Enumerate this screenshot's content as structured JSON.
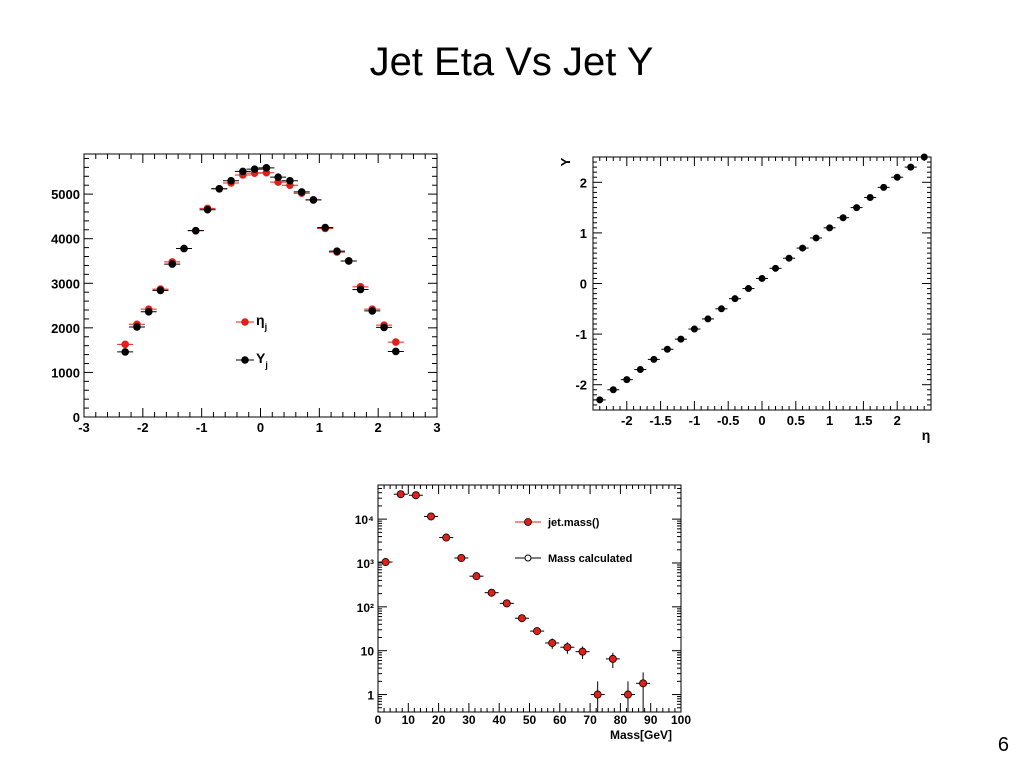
{
  "slide": {
    "title": "Jet Eta Vs Jet Y",
    "page_number": "6"
  },
  "chart_data": [
    {
      "type": "scatter",
      "title": "",
      "xlabel": "",
      "ylabel": "",
      "xlim": [
        -3,
        3
      ],
      "ylim": [
        0,
        5900
      ],
      "xticks": [
        "-3",
        "-2",
        "-1",
        "0",
        "1",
        "2",
        "3"
      ],
      "yticks": [
        "0",
        "1000",
        "2000",
        "3000",
        "4000",
        "5000"
      ],
      "ytick_values": [
        0,
        1000,
        2000,
        3000,
        4000,
        5000
      ],
      "legend": {
        "placement": "center-right"
      },
      "series": [
        {
          "name": "η_j",
          "legend_main": "η",
          "legend_sub": "j",
          "color": "#e0201b",
          "x": [
            -2.3,
            -2.1,
            -1.9,
            -1.7,
            -1.5,
            -1.3,
            -1.1,
            -0.9,
            -0.7,
            -0.5,
            -0.3,
            -0.1,
            0.1,
            0.3,
            0.5,
            0.7,
            0.9,
            1.1,
            1.3,
            1.5,
            1.7,
            1.9,
            2.1,
            2.3
          ],
          "y": [
            1630,
            2080,
            2420,
            2870,
            3480,
            3780,
            4180,
            4680,
            5120,
            5250,
            5430,
            5470,
            5480,
            5270,
            5200,
            5020,
            4870,
            4230,
            3700,
            3500,
            2920,
            2420,
            2060,
            1680
          ]
        },
        {
          "name": "Y_j",
          "legend_main": "Y",
          "legend_sub": "j",
          "color": "#000000",
          "x": [
            -2.3,
            -2.1,
            -1.9,
            -1.7,
            -1.5,
            -1.3,
            -1.1,
            -0.9,
            -0.7,
            -0.5,
            -0.3,
            -0.1,
            0.1,
            0.3,
            0.5,
            0.7,
            0.9,
            1.1,
            1.3,
            1.5,
            1.7,
            1.9,
            2.1,
            2.3
          ],
          "y": [
            1460,
            2020,
            2360,
            2840,
            3430,
            3780,
            4180,
            4650,
            5120,
            5300,
            5510,
            5560,
            5590,
            5380,
            5300,
            5050,
            4870,
            4250,
            3720,
            3500,
            2860,
            2380,
            2010,
            1470
          ]
        }
      ]
    },
    {
      "type": "scatter",
      "title": "",
      "xlabel": "η",
      "ylabel": "Y",
      "xlim": [
        -2.5,
        2.5
      ],
      "ylim": [
        -2.5,
        2.5
      ],
      "xticks": [
        "-2",
        "-1.5",
        "-1",
        "-0.5",
        "0",
        "0.5",
        "1",
        "1.5",
        "2"
      ],
      "xtick_values": [
        -2,
        -1.5,
        -1,
        -0.5,
        0,
        0.5,
        1,
        1.5,
        2
      ],
      "yticks": [
        "-2",
        "-1",
        "0",
        "1",
        "2"
      ],
      "ytick_values": [
        -2,
        -1,
        0,
        1,
        2
      ],
      "series": [
        {
          "color": "#000000",
          "x": [
            -2.4,
            -2.2,
            -2.0,
            -1.8,
            -1.6,
            -1.4,
            -1.2,
            -1.0,
            -0.8,
            -0.6,
            -0.4,
            -0.2,
            0.0,
            0.2,
            0.4,
            0.6,
            0.8,
            1.0,
            1.2,
            1.4,
            1.6,
            1.8,
            2.0,
            2.2,
            2.4
          ],
          "y": [
            -2.3,
            -2.1,
            -1.9,
            -1.7,
            -1.5,
            -1.3,
            -1.1,
            -0.9,
            -0.7,
            -0.5,
            -0.3,
            -0.1,
            0.1,
            0.3,
            0.5,
            0.7,
            0.9,
            1.1,
            1.3,
            1.5,
            1.7,
            1.9,
            2.1,
            2.3,
            2.5
          ]
        }
      ]
    },
    {
      "type": "scatter",
      "title": "",
      "xlabel": "Mass[GeV]",
      "ylabel": "",
      "xlim": [
        0,
        100
      ],
      "ylim": [
        0.4,
        60000
      ],
      "yscale": "log",
      "xticks": [
        "0",
        "10",
        "20",
        "30",
        "40",
        "50",
        "60",
        "70",
        "80",
        "90",
        "100"
      ],
      "xtick_values": [
        0,
        10,
        20,
        30,
        40,
        50,
        60,
        70,
        80,
        90,
        100
      ],
      "yticks": [
        "1",
        "10",
        "10²",
        "10³",
        "10⁴"
      ],
      "ytick_values": [
        1,
        10,
        100,
        1000,
        10000
      ],
      "legend": {
        "placement": "top-right"
      },
      "series": [
        {
          "name": "jet.mass()",
          "color": "#e0201b",
          "marker": "filled",
          "x": [
            2.5,
            7.5,
            12.5,
            17.5,
            22.5,
            27.5,
            32.5,
            37.5,
            42.5,
            47.5,
            52.5,
            57.5,
            62.5,
            67.5,
            72.5,
            77.5,
            82.5,
            87.5
          ],
          "y": [
            1050,
            37000,
            35000,
            11500,
            3800,
            1300,
            500,
            210,
            120,
            55,
            28,
            15,
            12,
            9.5,
            1,
            6.5,
            1,
            1.8
          ],
          "yerr_low": [
            1000,
            36000,
            34000,
            11000,
            3700,
            1250,
            480,
            195,
            110,
            48,
            23,
            11,
            8.5,
            6.5,
            0,
            4,
            0,
            0
          ],
          "yerr_high": [
            1100,
            38000,
            36000,
            12000,
            3900,
            1350,
            520,
            225,
            130,
            62,
            33,
            19,
            15.5,
            12.5,
            2,
            9,
            2,
            3.2
          ]
        },
        {
          "name": "Mass calculated",
          "color": "#000000",
          "marker": "open",
          "x": [],
          "y": []
        }
      ]
    }
  ]
}
